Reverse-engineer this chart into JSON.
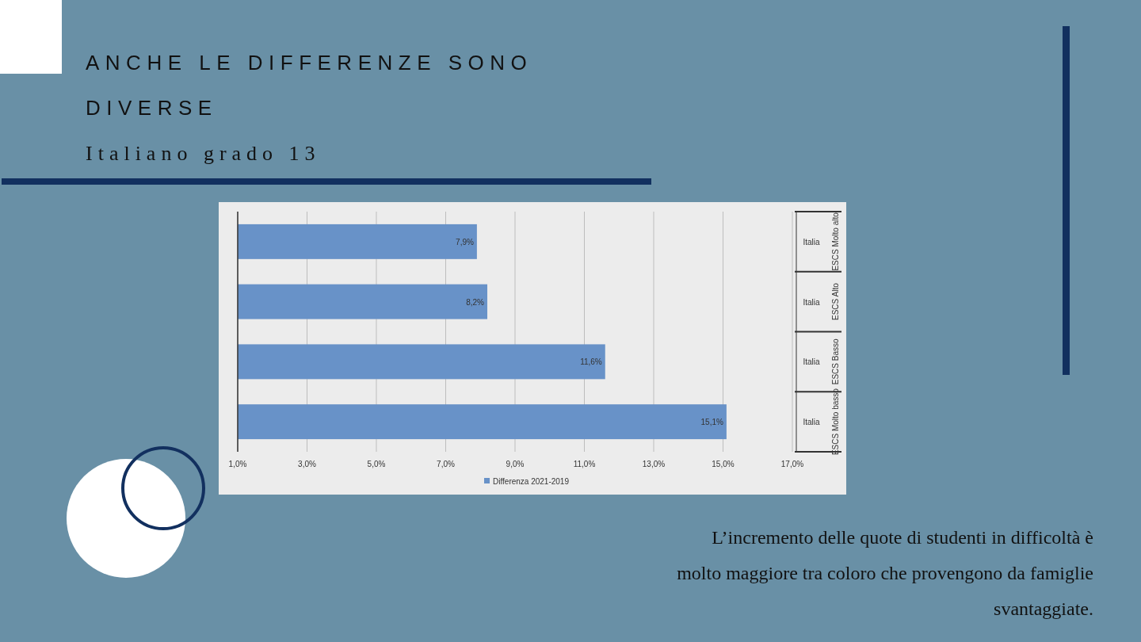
{
  "chart_data": {
    "type": "bar",
    "orientation": "horizontal",
    "title": "ANCHE LE DIFFERENZE SONO DIVERSE",
    "subtitle": "Italiano grado 13",
    "categories": [
      "Italia",
      "Italia",
      "Italia",
      "Italia"
    ],
    "series": [
      {
        "name": "Differenza 2021-2019",
        "color": "#6892c8",
        "values": [
          7.9,
          8.2,
          11.6,
          15.1
        ],
        "value_labels": [
          "7,9%",
          "8,2%",
          "11,6%",
          "15,1%"
        ]
      }
    ],
    "xlim": [
      1,
      17
    ],
    "xticks": [
      {
        "value": 1,
        "label": "1,0%"
      },
      {
        "value": 3,
        "label": "3,0%"
      },
      {
        "value": 5,
        "label": "5,0%"
      },
      {
        "value": 7,
        "label": "7,0%"
      },
      {
        "value": 9,
        "label": "9,0%"
      },
      {
        "value": 11,
        "label": "11,0%"
      },
      {
        "value": 13,
        "label": "13,0%"
      },
      {
        "value": 15,
        "label": "15,0%"
      },
      {
        "value": 17,
        "label": "17,0%"
      }
    ],
    "grid": "x",
    "legend": "bottom",
    "annotations": [
      "ESCS Molto alto",
      "ESCS Alto",
      "ESCS Basso",
      "ESCS Molto basso",
      "L’incremento delle quote di studenti in difficoltà è molto maggiore tra coloro che provengono da famiglie svantaggiate."
    ]
  }
}
